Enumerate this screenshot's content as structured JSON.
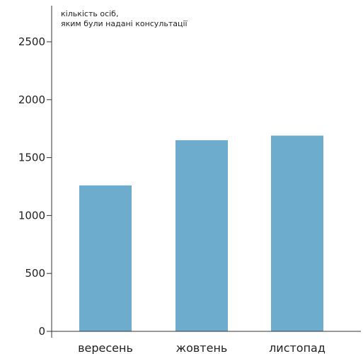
{
  "chart_data": {
    "type": "bar",
    "categories": [
      "вересень",
      "жовтень",
      "листопад"
    ],
    "values": [
      1260,
      1650,
      1690
    ],
    "ylabel": [
      "кількість осіб,",
      "яким були надані консультації"
    ],
    "yticks": [
      0,
      500,
      1000,
      1500,
      2000,
      2500
    ],
    "ylim": [
      0,
      2700
    ],
    "grid": false,
    "bar_color": "#6eaccd"
  }
}
